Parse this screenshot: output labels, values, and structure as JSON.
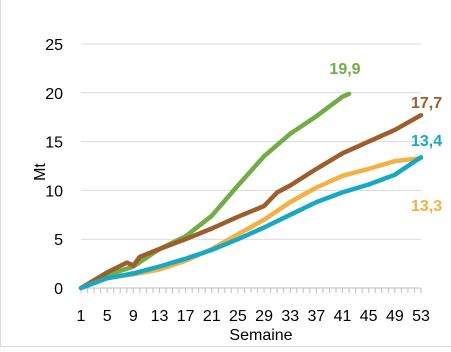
{
  "chart_data": {
    "type": "line",
    "xlabel": "Semaine",
    "ylabel": "Mt",
    "xlim": [
      1,
      53
    ],
    "ylim": [
      0,
      25
    ],
    "y_ticks": [
      0,
      5,
      10,
      15,
      20,
      25
    ],
    "x_tick_labels": [
      "1",
      "5",
      "9",
      "13",
      "17",
      "21",
      "25",
      "29",
      "33",
      "37",
      "41",
      "45",
      "49",
      "53"
    ],
    "grid": "horizontal",
    "legend": "none",
    "series": [
      {
        "color": "#70ad47",
        "end_label": "19,9",
        "points": [
          [
            1,
            0
          ],
          [
            5,
            1.3
          ],
          [
            9,
            2.2
          ],
          [
            13,
            4.0
          ],
          [
            17,
            5.3
          ],
          [
            21,
            7.4
          ],
          [
            25,
            10.5
          ],
          [
            29,
            13.5
          ],
          [
            33,
            15.8
          ],
          [
            37,
            17.6
          ],
          [
            41,
            19.6
          ],
          [
            42,
            19.9
          ]
        ]
      },
      {
        "color": "#9e5e2a",
        "end_label": "17,7",
        "points": [
          [
            1,
            0
          ],
          [
            5,
            1.6
          ],
          [
            8,
            2.6
          ],
          [
            9,
            2.3
          ],
          [
            10,
            3.2
          ],
          [
            13,
            4.0
          ],
          [
            17,
            5.0
          ],
          [
            21,
            6.1
          ],
          [
            25,
            7.3
          ],
          [
            29,
            8.4
          ],
          [
            31,
            9.8
          ],
          [
            33,
            10.5
          ],
          [
            37,
            12.2
          ],
          [
            41,
            13.8
          ],
          [
            45,
            15.0
          ],
          [
            49,
            16.2
          ],
          [
            53,
            17.7
          ]
        ]
      },
      {
        "color": "#f4b042",
        "end_label": "13,3",
        "points": [
          [
            1,
            0
          ],
          [
            5,
            1.0
          ],
          [
            9,
            1.4
          ],
          [
            13,
            1.9
          ],
          [
            17,
            2.8
          ],
          [
            21,
            4.0
          ],
          [
            25,
            5.5
          ],
          [
            29,
            7.0
          ],
          [
            33,
            8.8
          ],
          [
            37,
            10.3
          ],
          [
            41,
            11.5
          ],
          [
            45,
            12.2
          ],
          [
            49,
            13.0
          ],
          [
            53,
            13.3
          ]
        ]
      },
      {
        "color": "#17a8c4",
        "end_label": "13,4",
        "points": [
          [
            1,
            0
          ],
          [
            5,
            1.0
          ],
          [
            9,
            1.5
          ],
          [
            13,
            2.2
          ],
          [
            17,
            3.0
          ],
          [
            21,
            3.9
          ],
          [
            25,
            5.0
          ],
          [
            29,
            6.2
          ],
          [
            33,
            7.5
          ],
          [
            37,
            8.8
          ],
          [
            41,
            9.8
          ],
          [
            45,
            10.6
          ],
          [
            49,
            11.6
          ],
          [
            53,
            13.4
          ]
        ]
      }
    ]
  }
}
